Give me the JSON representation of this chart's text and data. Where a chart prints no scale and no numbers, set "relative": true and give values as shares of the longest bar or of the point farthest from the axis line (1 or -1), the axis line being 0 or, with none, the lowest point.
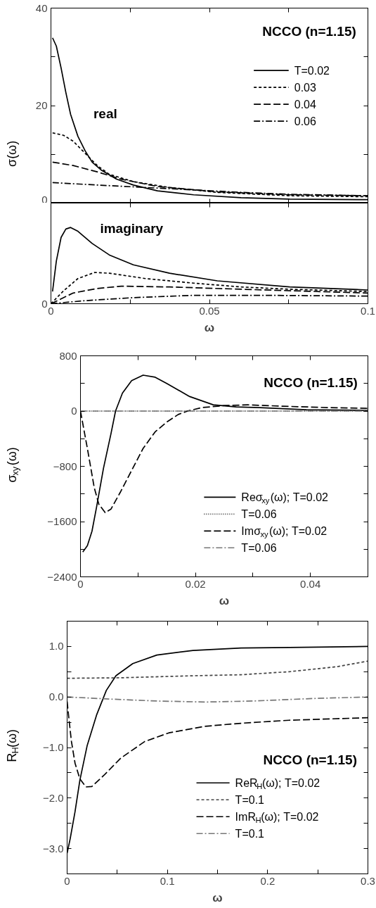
{
  "chart_data": [
    {
      "type": "line",
      "title": "NCCO (n=1.15)",
      "ylabel": "σ(ω)",
      "xlim": [
        0,
        0.1
      ],
      "ylim": [
        0,
        40
      ],
      "tick_labels": "y",
      "xticks": [
        0,
        {
          "value": 0.025,
          "label": null
        },
        0.05,
        {
          "value": 0.075,
          "label": null
        },
        0.1
      ],
      "yticks": [
        0,
        {
          "value": 10,
          "label": null
        },
        20,
        {
          "value": 30,
          "label": null
        },
        40
      ],
      "legend": "top right",
      "annotations": [
        "real"
      ],
      "series": [
        {
          "name": "T=0.02",
          "color": "#000000",
          "line_style": "solid",
          "x": [
            0.0005,
            0.0017,
            0.0032,
            0.0047,
            0.0062,
            0.0085,
            0.0108,
            0.013,
            0.016,
            0.0207,
            0.026,
            0.0336,
            0.045,
            0.06,
            0.0753,
            0.1
          ],
          "values": [
            33.9,
            32.2,
            27.7,
            22.7,
            18.2,
            13.7,
            10.7,
            8.4,
            6.7,
            4.9,
            3.7,
            2.5,
            1.7,
            1.1,
            0.8,
            0.7
          ]
        },
        {
          "name": "0.03",
          "color": "#000000",
          "line_style": "dashed",
          "x": [
            0.0005,
            0.004,
            0.007,
            0.0108,
            0.0146,
            0.0184,
            0.026,
            0.0374,
            0.0525,
            0.0753,
            0.1
          ],
          "values": [
            14.4,
            13.9,
            12.7,
            10.2,
            7.7,
            5.9,
            4.4,
            3.2,
            2.2,
            1.5,
            1.3
          ]
        },
        {
          "name": "0.04",
          "color": "#000000",
          "line_style": "longdash",
          "x": [
            0.0005,
            0.007,
            0.0146,
            0.0222,
            0.0336,
            0.0525,
            0.0753,
            0.1
          ],
          "values": [
            8.4,
            7.7,
            6.4,
            4.9,
            3.4,
            2.3,
            1.7,
            1.5
          ]
        },
        {
          "name": "0.06",
          "color": "#000000",
          "line_style": "dashdot",
          "x": [
            0.0005,
            0.0146,
            0.0298,
            0.045,
            0.06,
            0.0753,
            0.1
          ],
          "values": [
            4.2,
            3.7,
            3.2,
            2.7,
            2.2,
            1.8,
            1.5
          ]
        }
      ]
    },
    {
      "type": "line",
      "relative": true,
      "xlabel": "ω",
      "xlim": [
        0,
        0.1
      ],
      "xticks": [
        0,
        {
          "value": 0.025,
          "label": null
        },
        0.05,
        {
          "value": 0.075,
          "label": null
        },
        0.1
      ],
      "annotations": [
        "imaginary",
        "0"
      ],
      "series": [
        {
          "color": "#000000",
          "line_style": "solid",
          "x": [
            0.0005,
            0.0017,
            0.0032,
            0.0047,
            0.0062,
            0.0085,
            0.013,
            0.0184,
            0.026,
            0.0374,
            0.0525,
            0.0753,
            0.1
          ],
          "values": [
            0.16,
            0.56,
            0.87,
            0.98,
            1.0,
            0.95,
            0.79,
            0.64,
            0.51,
            0.4,
            0.3,
            0.22,
            0.18
          ]
        },
        {
          "color": "#000000",
          "line_style": "dashed",
          "x": [
            0,
            0.004,
            0.0085,
            0.0138,
            0.0184,
            0.0298,
            0.045,
            0.06,
            0.0753,
            0.1
          ],
          "values": [
            0,
            0.17,
            0.33,
            0.41,
            0.4,
            0.33,
            0.27,
            0.22,
            0.19,
            0.16
          ]
        },
        {
          "color": "#000000",
          "line_style": "longdash",
          "x": [
            0,
            0.007,
            0.0146,
            0.0222,
            0.0374,
            0.06,
            0.1
          ],
          "values": [
            0,
            0.14,
            0.2,
            0.23,
            0.22,
            0.19,
            0.14
          ]
        },
        {
          "color": "#000000",
          "line_style": "dashdot",
          "x": [
            0,
            0.0108,
            0.026,
            0.045,
            0.0677,
            0.1
          ],
          "values": [
            0,
            0.04,
            0.08,
            0.11,
            0.11,
            0.1
          ]
        }
      ]
    },
    {
      "type": "line",
      "title": "NCCO (n=1.15)",
      "xlabel": "ω",
      "ylabel": "σ$_{xy}$(ω)",
      "xlim": [
        0,
        0.05
      ],
      "ylim": [
        -2400,
        800
      ],
      "xticks": [
        0,
        {
          "value": 0.01,
          "label": null
        },
        0.02,
        {
          "value": 0.03,
          "label": null
        },
        0.04,
        {
          "value": 0.05,
          "label": null
        }
      ],
      "yticks": [
        {
          "value": -2400,
          "label": "−2400"
        },
        {
          "value": -2000,
          "label": null
        },
        {
          "value": -1600,
          "label": "−1600"
        },
        {
          "value": -1200,
          "label": null
        },
        {
          "value": -800,
          "label": "−800"
        },
        {
          "value": -400,
          "label": null
        },
        0,
        {
          "value": 400,
          "label": null
        },
        800
      ],
      "legend": "bottom right",
      "series": [
        {
          "name": "Reσ$_{xy}$(ω); T=0.02",
          "color": "#000000",
          "line_style": "solid",
          "x": [
            0.0004,
            0.0012,
            0.002,
            0.0028,
            0.004,
            0.0053,
            0.0061,
            0.0073,
            0.0089,
            0.0109,
            0.013,
            0.015,
            0.019,
            0.0231,
            0.0271,
            0.0312,
            0.0393,
            0.05
          ],
          "values": [
            -2040,
            -1950,
            -1740,
            -1390,
            -830,
            -330,
            0,
            260,
            440,
            520,
            490,
            400,
            210,
            90,
            60,
            50,
            20,
            10
          ]
        },
        {
          "name": "T=0.06",
          "color": "#333333",
          "line_style": "dotted",
          "x": [
            0,
            0.01,
            0.02,
            0.03,
            0.04,
            0.05
          ],
          "values": [
            0,
            0,
            0,
            0,
            0,
            0
          ]
        },
        {
          "name": "Imσ$_{xy}$(ω); T=0.02",
          "color": "#000000",
          "line_style": "longdash",
          "x": [
            0,
            0.0012,
            0.0024,
            0.0032,
            0.0043,
            0.0053,
            0.0069,
            0.0089,
            0.0109,
            0.013,
            0.015,
            0.017,
            0.0186,
            0.0211,
            0.0251,
            0.0291,
            0.0352,
            0.0433,
            0.05
          ],
          "values": [
            0,
            -540,
            -1110,
            -1350,
            -1470,
            -1420,
            -1180,
            -860,
            -540,
            -300,
            -160,
            -50,
            0,
            50,
            80,
            90,
            70,
            50,
            40
          ]
        },
        {
          "name": "T=0.06",
          "color": "#777777",
          "line_style": "dashdot",
          "x": [
            0,
            0.01,
            0.02,
            0.03,
            0.04,
            0.05
          ],
          "values": [
            0,
            0,
            0,
            0,
            0,
            0
          ]
        }
      ]
    },
    {
      "type": "line",
      "title": "NCCO (n=1.15)",
      "xlabel": "ω",
      "ylabel": "R$_{H}$(ω)",
      "xlim": [
        0,
        0.3
      ],
      "ylim": [
        -3.5,
        1.5
      ],
      "xticks": [
        0,
        {
          "value": 0.05,
          "label": null
        },
        0.1,
        {
          "value": 0.15,
          "label": null
        },
        0.2,
        {
          "value": 0.25,
          "label": null
        },
        0.3
      ],
      "yticks": [
        {
          "value": -3.5,
          "label": null
        },
        {
          "value": -3,
          "label": "−3.0"
        },
        {
          "value": -2.5,
          "label": null
        },
        {
          "value": -2,
          "label": "−2.0"
        },
        {
          "value": -1.5,
          "label": null
        },
        {
          "value": -1,
          "label": "−1.0"
        },
        {
          "value": -0.5,
          "label": null
        },
        {
          "value": 0,
          "label": "0.0"
        },
        {
          "value": 0.5,
          "label": null
        },
        {
          "value": 1,
          "label": "1.0"
        },
        {
          "value": 1.5,
          "label": null
        }
      ],
      "legend": "bottom right",
      "series": [
        {
          "name": "ReR$_{H}$(ω); T=0.02",
          "color": "#000000",
          "line_style": "solid",
          "x": [
            0,
            0.0031,
            0.0079,
            0.0127,
            0.0199,
            0.0295,
            0.0391,
            0.0487,
            0.0655,
            0.0895,
            0.1255,
            0.1735,
            0.2215,
            0.3
          ],
          "values": [
            -3.09,
            -2.8,
            -2.27,
            -1.65,
            -0.97,
            -0.35,
            0.13,
            0.42,
            0.66,
            0.83,
            0.92,
            0.97,
            0.98,
            1.0
          ]
        },
        {
          "name": "T=0.1",
          "color": "#444444",
          "line_style": "dashed",
          "x": [
            0,
            0.0535,
            0.1255,
            0.1735,
            0.2215,
            0.2695,
            0.3
          ],
          "values": [
            0.37,
            0.38,
            0.42,
            0.44,
            0.5,
            0.6,
            0.71
          ]
        },
        {
          "name": "ImR$_{H}$(ω); T=0.02",
          "color": "#000000",
          "line_style": "longdash",
          "x": [
            0,
            0.0019,
            0.0043,
            0.0079,
            0.0127,
            0.0187,
            0.0247,
            0.0367,
            0.0535,
            0.0775,
            0.1015,
            0.1375,
            0.1735,
            0.2215,
            0.3
          ],
          "values": [
            -0.09,
            -0.45,
            -0.88,
            -1.31,
            -1.62,
            -1.78,
            -1.77,
            -1.55,
            -1.21,
            -0.88,
            -0.71,
            -0.58,
            -0.52,
            -0.46,
            -0.41
          ]
        },
        {
          "name": "T=0.1",
          "color": "#777777",
          "line_style": "dashdot",
          "x": [
            0,
            0.0415,
            0.0895,
            0.1375,
            0.1855,
            0.2455,
            0.3
          ],
          "values": [
            0,
            -0.04,
            -0.08,
            -0.1,
            -0.08,
            -0.03,
            0
          ]
        }
      ]
    }
  ]
}
